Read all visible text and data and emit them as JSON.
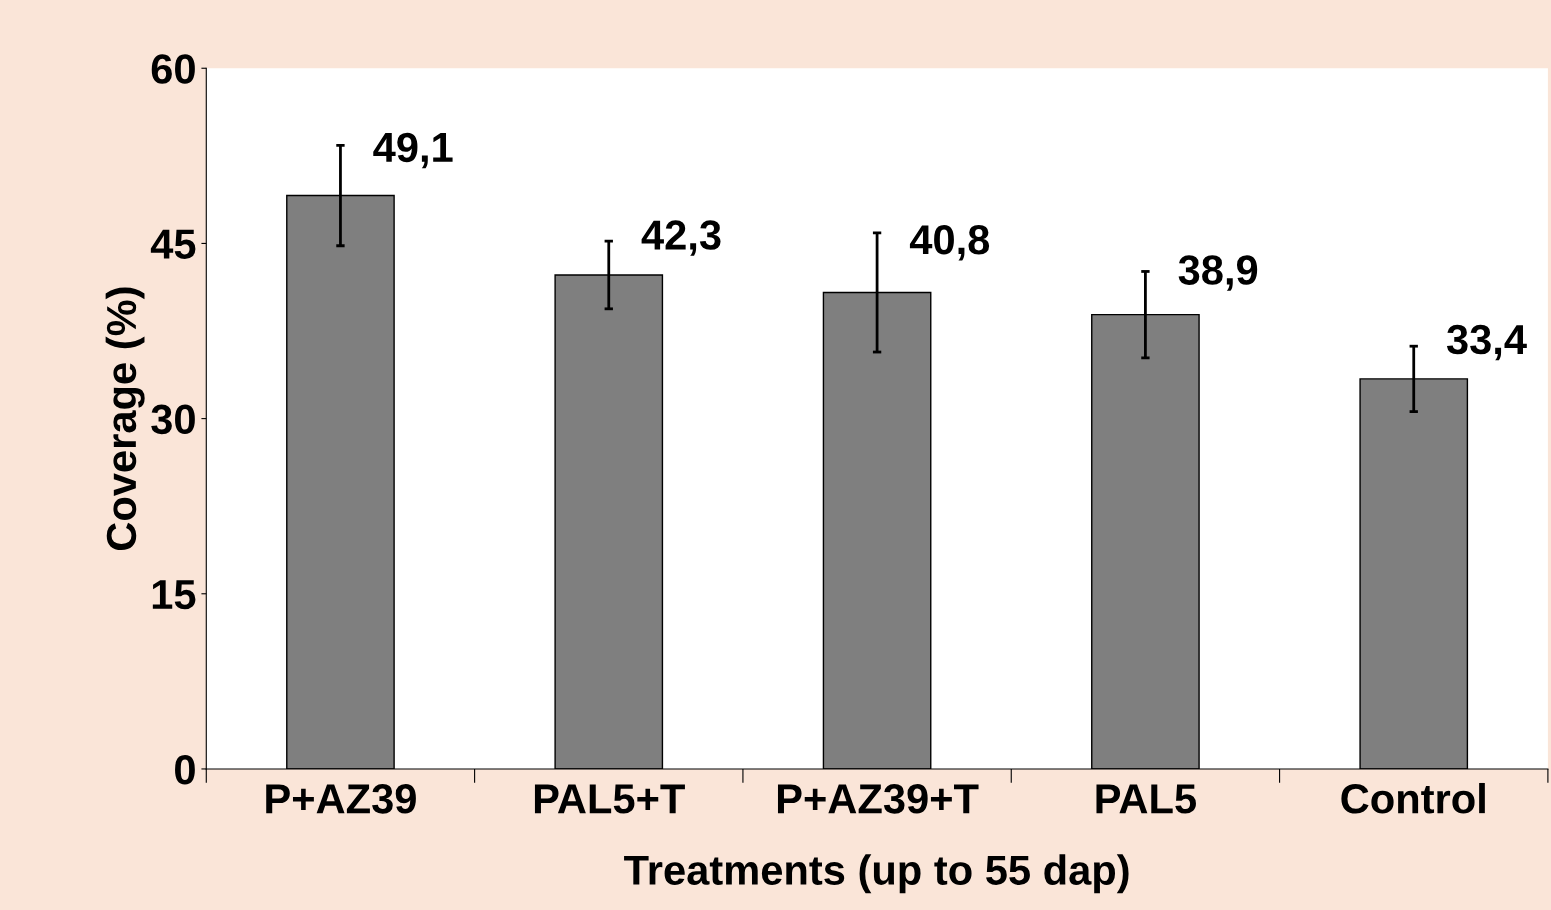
{
  "chart_data": {
    "type": "bar",
    "xlabel": "Treatments (up to 55 dap)",
    "ylabel": "Coverage (%)",
    "categories": [
      "P+AZ39",
      "PAL5+T",
      "P+AZ39+T",
      "PAL5",
      "Control"
    ],
    "values": [
      49.1,
      42.3,
      40.8,
      38.9,
      33.4
    ],
    "errors": [
      4.3,
      2.9,
      5.1,
      3.7,
      2.8
    ],
    "value_labels": [
      "49,1",
      "42,3",
      "40,8",
      "38,9",
      "33,4"
    ],
    "color": "#7f7f7f",
    "ylim": [
      0,
      60
    ],
    "yticks": [
      0,
      15,
      30,
      45,
      60
    ],
    "grid": false
  }
}
